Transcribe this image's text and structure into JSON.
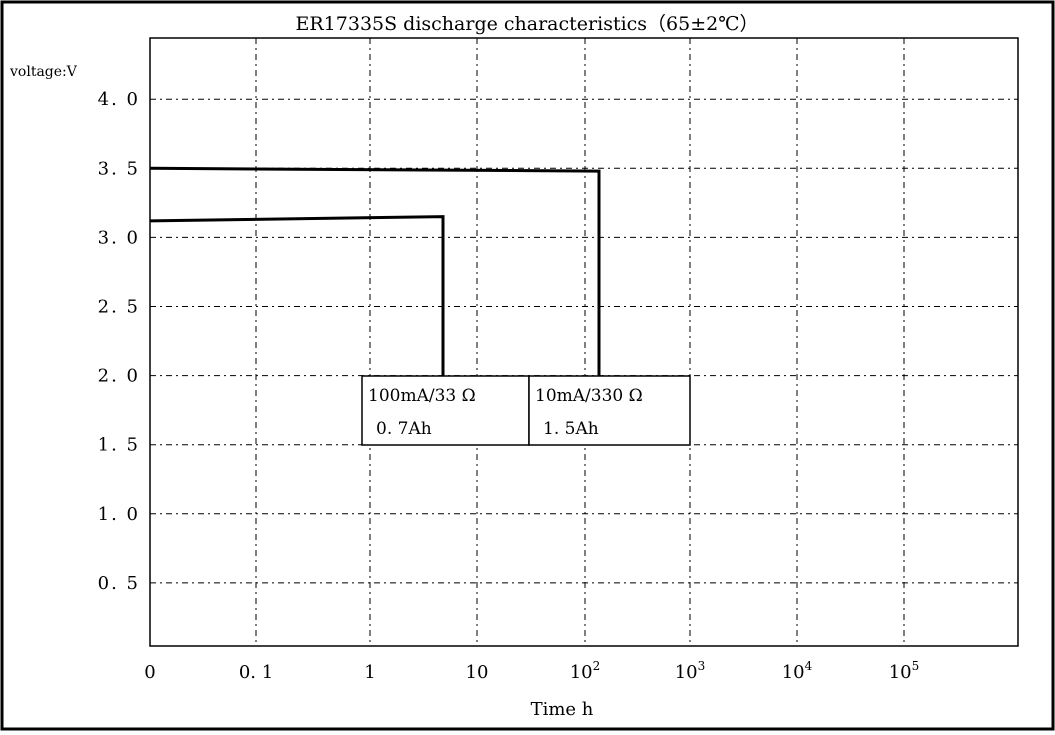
{
  "chart_data": {
    "type": "line",
    "title": "ER17335S discharge characteristics（65±2℃）",
    "xlabel": "Time h",
    "ylabel": "voltage:V",
    "x_scale": "log",
    "x_ticks": [
      {
        "value": 0,
        "label": "0",
        "sup": ""
      },
      {
        "value": 0.1,
        "label": "0. 1",
        "sup": ""
      },
      {
        "value": 1,
        "label": "1",
        "sup": ""
      },
      {
        "value": 10,
        "label": "10",
        "sup": ""
      },
      {
        "value": 100,
        "label": "10",
        "sup": "2"
      },
      {
        "value": 1000,
        "label": "10",
        "sup": "3"
      },
      {
        "value": 10000,
        "label": "10",
        "sup": "4"
      },
      {
        "value": 100000,
        "label": "10",
        "sup": "5"
      }
    ],
    "y_ticks": [
      {
        "value": 0.5,
        "label": "0. 5"
      },
      {
        "value": 1.0,
        "label": "1. 0"
      },
      {
        "value": 1.5,
        "label": "1. 5"
      },
      {
        "value": 2.0,
        "label": "2. 0"
      },
      {
        "value": 2.5,
        "label": "2. 5"
      },
      {
        "value": 3.0,
        "label": "3. 0"
      },
      {
        "value": 3.5,
        "label": "3. 5"
      },
      {
        "value": 4.0,
        "label": "4. 0"
      }
    ],
    "ylim": [
      0,
      4.5
    ],
    "grid": true,
    "series": [
      {
        "load": "100mA/33Ω",
        "capacity": "0. 7Ah",
        "points": [
          [
            0,
            3.12
          ],
          [
            5,
            3.15
          ],
          [
            5,
            2.0
          ]
        ]
      },
      {
        "load": "10mA/330Ω",
        "capacity": "1. 5Ah",
        "points": [
          [
            0,
            3.5
          ],
          [
            130,
            3.48
          ],
          [
            130,
            2.0
          ]
        ]
      }
    ],
    "annotations": [
      {
        "line1": "100mA/33 Ω",
        "line2": "0. 7Ah"
      },
      {
        "line1": "10mA/330 Ω",
        "line2": "1. 5Ah"
      }
    ]
  }
}
